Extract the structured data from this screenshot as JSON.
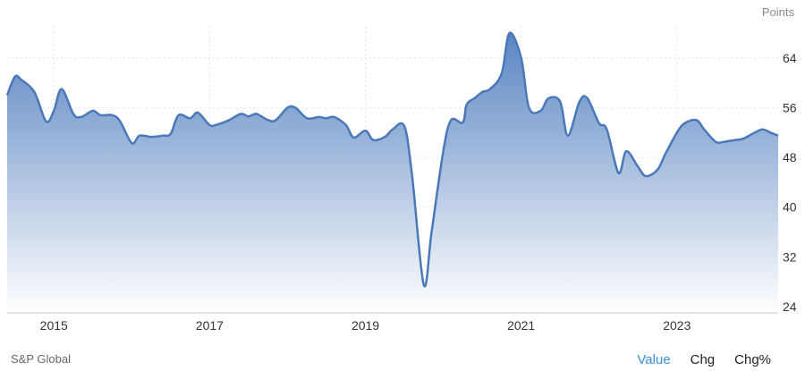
{
  "header": {
    "unit": "Points"
  },
  "footer": {
    "source": "S&P Global"
  },
  "tabs": [
    {
      "label": "Value",
      "active": true
    },
    {
      "label": "Chg",
      "active": false
    },
    {
      "label": "Chg%",
      "active": false
    }
  ],
  "colors": {
    "line": "#4a78b8",
    "fill_top": "#5a85c2",
    "fill_bottom": "#ffffff",
    "active_tab": "#3b8fd6"
  },
  "chart_data": {
    "type": "area",
    "ylim": [
      23,
      69
    ],
    "yticks": [
      24,
      32,
      40,
      48,
      56,
      64
    ],
    "xlim": [
      2014.4,
      2024.3
    ],
    "xticks": [
      {
        "x": 2015,
        "label": "2015"
      },
      {
        "x": 2017,
        "label": "2017"
      },
      {
        "x": 2019,
        "label": "2019"
      },
      {
        "x": 2021,
        "label": "2021"
      },
      {
        "x": 2023,
        "label": "2023"
      }
    ],
    "grid": true,
    "series": [
      {
        "x": [
          2014.4,
          2014.5,
          2014.58,
          2014.75,
          2014.9,
          2015.0,
          2015.1,
          2015.25,
          2015.35,
          2015.5,
          2015.6,
          2015.75,
          2015.85,
          2016.0,
          2016.1,
          2016.25,
          2016.4,
          2016.5,
          2016.6,
          2016.75,
          2016.85,
          2017.0,
          2017.1,
          2017.25,
          2017.4,
          2017.5,
          2017.6,
          2017.75,
          2017.85,
          2018.0,
          2018.1,
          2018.25,
          2018.4,
          2018.5,
          2018.6,
          2018.75,
          2018.85,
          2019.0,
          2019.1,
          2019.25,
          2019.35,
          2019.5,
          2019.6,
          2019.75,
          2019.85,
          2020.0,
          2020.1,
          2020.25,
          2020.3,
          2020.4,
          2020.5,
          2020.6,
          2020.75,
          2020.85,
          2021.0,
          2021.1,
          2021.25,
          2021.35,
          2021.5,
          2021.6,
          2021.75,
          2021.85,
          2022.0,
          2022.1,
          2022.25,
          2022.35,
          2022.5,
          2022.6,
          2022.75,
          2022.85,
          2023.0,
          2023.1,
          2023.25,
          2023.35,
          2023.5,
          2023.6,
          2023.75,
          2023.85,
          2024.0,
          2024.1,
          2024.2,
          2024.3
        ],
        "y": [
          58,
          61,
          60.5,
          58.5,
          53.8,
          55.5,
          59,
          55,
          54.5,
          55.5,
          54.8,
          54.8,
          53.8,
          50.3,
          51.5,
          51.3,
          51.5,
          51.8,
          54.8,
          54.3,
          55.2,
          53.2,
          53.3,
          54,
          55,
          54.6,
          55,
          54,
          54,
          56,
          56,
          54.3,
          54.5,
          54.3,
          54.5,
          53.2,
          51.2,
          52.3,
          50.8,
          51.3,
          52.5,
          53,
          45,
          27.5,
          36,
          49,
          54,
          53.6,
          56.5,
          57.5,
          58.5,
          59,
          61.5,
          68,
          64,
          56,
          55.5,
          57.5,
          57,
          51.5,
          57,
          57.5,
          53.5,
          52.5,
          45.5,
          49,
          46.5,
          45,
          46,
          48.5,
          52,
          53.5,
          54,
          52.5,
          50.5,
          50.5,
          50.8,
          51,
          52,
          52.5,
          52,
          51.5
        ]
      }
    ]
  }
}
